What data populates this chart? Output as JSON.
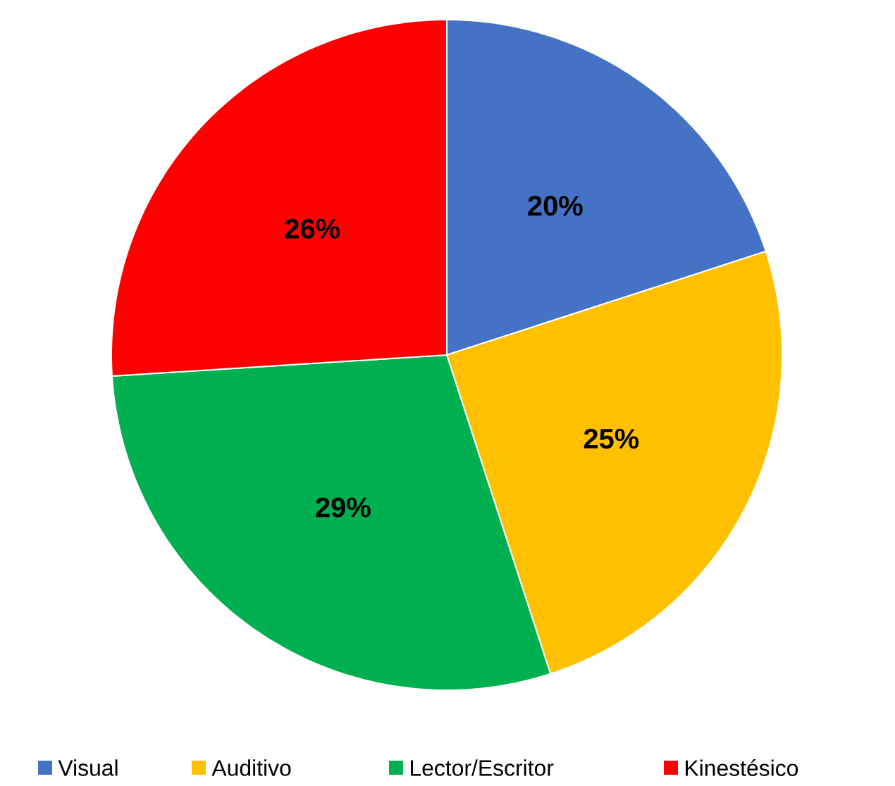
{
  "chart_data": {
    "type": "pie",
    "categories": [
      "Visual",
      "Auditivo",
      "Lector/Escritor",
      "Kinestésico"
    ],
    "values": [
      20,
      25,
      29,
      26
    ],
    "colors": [
      "#4472c4",
      "#ffc000",
      "#00b050",
      "#ff0000"
    ],
    "value_labels": [
      "20%",
      "25%",
      "29%",
      "26%"
    ],
    "legend": "bottom"
  }
}
